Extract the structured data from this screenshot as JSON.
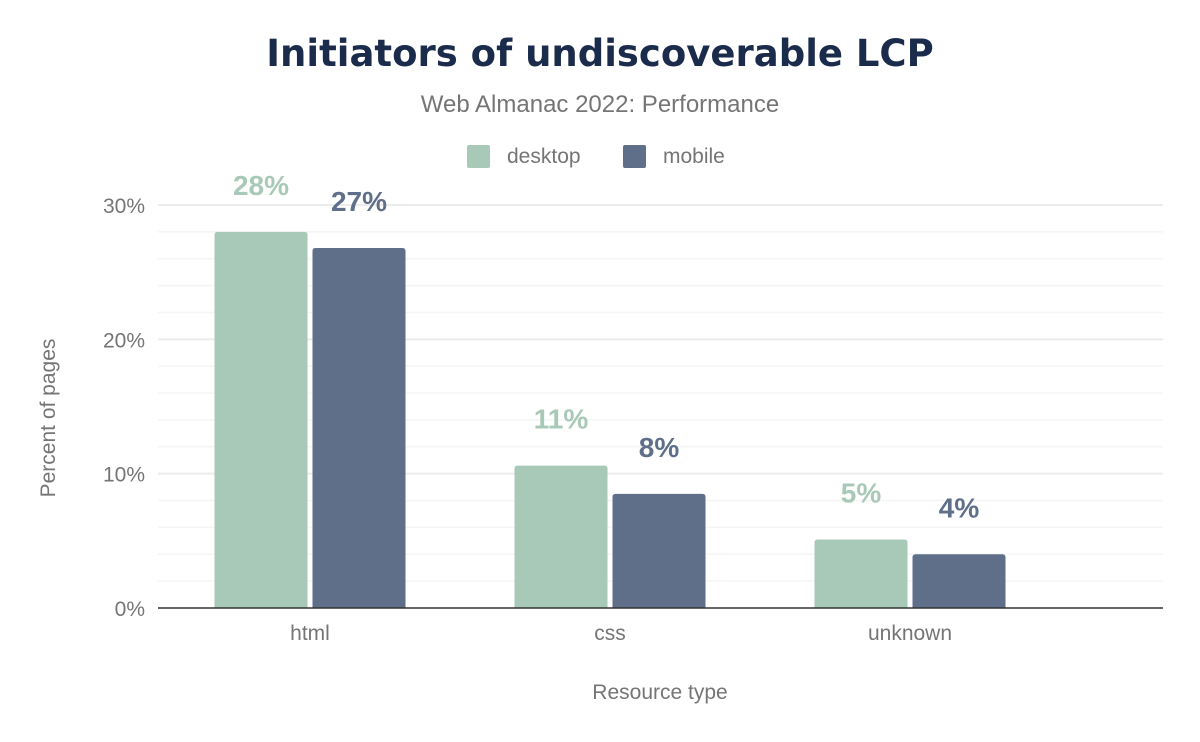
{
  "chart_data": {
    "type": "bar",
    "title": "Initiators of undiscoverable LCP",
    "subtitle": "Web Almanac 2022: Performance",
    "xlabel": "Resource type",
    "ylabel": "Percent of pages",
    "categories": [
      "html",
      "css",
      "unknown"
    ],
    "series": [
      {
        "name": "desktop",
        "color": "#a8c9b8",
        "values": [
          28.0,
          10.6,
          5.1
        ],
        "labels": [
          "28%",
          "11%",
          "5%"
        ]
      },
      {
        "name": "mobile",
        "color": "#5f6f8a",
        "values": [
          26.8,
          8.5,
          4.0
        ],
        "labels": [
          "27%",
          "8%",
          "4%"
        ]
      }
    ],
    "ylim": [
      0,
      30
    ],
    "yticks": [
      0,
      10,
      20,
      30
    ],
    "ytick_labels": [
      "0%",
      "10%",
      "20%",
      "30%"
    ],
    "grid": true,
    "minor_grid_step": 2,
    "legend_placement": "top-center"
  }
}
